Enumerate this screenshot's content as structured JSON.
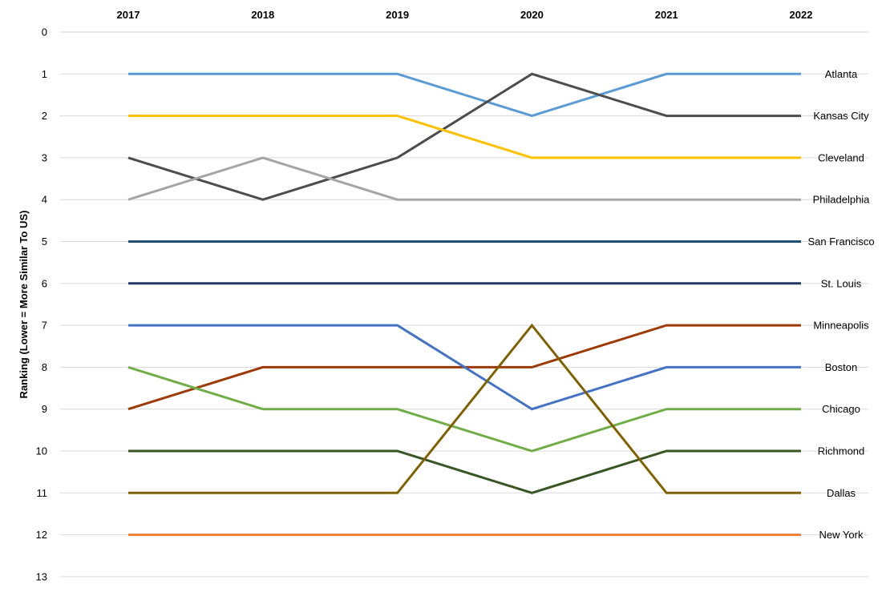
{
  "chart_data": {
    "type": "line",
    "title": "",
    "xlabel": "",
    "ylabel": "Ranking (Lower = More Similar To US)",
    "x": [
      "2017",
      "2018",
      "2019",
      "2020",
      "2021",
      "2022"
    ],
    "ylim": [
      0,
      13
    ],
    "y_inverted": true,
    "y_ticks": [
      0,
      1,
      2,
      3,
      4,
      5,
      6,
      7,
      8,
      9,
      10,
      11,
      12,
      13
    ],
    "x_axis_position": "top",
    "grid": true,
    "legend": "labels at right end of lines",
    "series": [
      {
        "name": "Atlanta",
        "color": "#5b9bd5",
        "values": [
          1,
          1,
          1,
          2,
          1,
          1
        ]
      },
      {
        "name": "Kansas City",
        "color": "#4d4d4d",
        "values": [
          3,
          4,
          3,
          1,
          2,
          2
        ]
      },
      {
        "name": "Cleveland",
        "color": "#ffc000",
        "values": [
          2,
          2,
          2,
          3,
          3,
          3
        ]
      },
      {
        "name": "Philadelphia",
        "color": "#a5a5a5",
        "values": [
          4,
          3,
          4,
          4,
          4,
          4
        ]
      },
      {
        "name": "San Francisco",
        "color": "#1f4e79",
        "values": [
          5,
          5,
          5,
          5,
          5,
          5
        ]
      },
      {
        "name": "St. Louis",
        "color": "#203864",
        "values": [
          6,
          6,
          6,
          6,
          6,
          6
        ]
      },
      {
        "name": "Minneapolis",
        "color": "#9e3a08",
        "values": [
          9,
          8,
          8,
          8,
          7,
          7
        ]
      },
      {
        "name": "Boston",
        "color": "#4472c4",
        "values": [
          7,
          7,
          7,
          9,
          8,
          8
        ]
      },
      {
        "name": "Chicago",
        "color": "#70ad47",
        "values": [
          8,
          9,
          9,
          10,
          9,
          9
        ]
      },
      {
        "name": "Richmond",
        "color": "#375623",
        "values": [
          10,
          10,
          10,
          11,
          10,
          10
        ]
      },
      {
        "name": "Dallas",
        "color": "#806000",
        "values": [
          11,
          11,
          11,
          7,
          11,
          11
        ]
      },
      {
        "name": "New York",
        "color": "#ed7d31",
        "values": [
          12,
          12,
          12,
          12,
          12,
          12
        ]
      }
    ]
  }
}
